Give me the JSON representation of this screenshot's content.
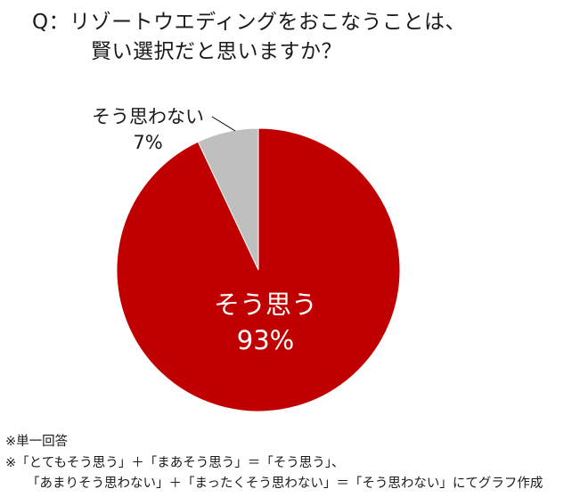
{
  "question": {
    "line1": "Q：リゾートウエディングをおこなうことは、",
    "line2": "賢い選択だと思いますか？"
  },
  "colors": {
    "agree": "#c00000",
    "disagree": "#bfbfbf"
  },
  "chart_data": {
    "type": "pie",
    "slices": [
      {
        "label": "そう思う",
        "value": 93,
        "value_label": "93%",
        "color": "#c00000"
      },
      {
        "label": "そう思わない",
        "value": 7,
        "value_label": "7%",
        "color": "#bfbfbf"
      }
    ]
  },
  "notes": {
    "line1": "※単一回答",
    "line2": "※「とてもそう思う」＋「まあそう思う」＝「そう思う」、",
    "line3": "「あまりそう思わない」＋「まったくそう思わない」＝「そう思わない」にてグラフ作成"
  }
}
